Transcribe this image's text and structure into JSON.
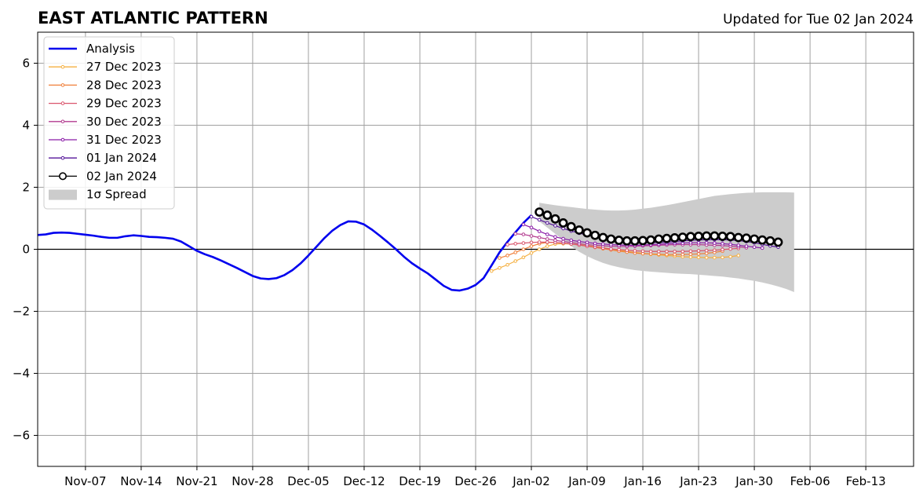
{
  "title": "EAST ATLANTIC PATTERN",
  "updated": "Updated for Tue 02 Jan 2024",
  "chart_data": {
    "type": "line",
    "title": "EAST ATLANTIC PATTERN",
    "subtitle": "Updated for Tue 02 Jan 2024",
    "xlim": [
      "2023-11-01",
      "2024-02-19"
    ],
    "ylim": [
      -7,
      7
    ],
    "yticks": [
      -6,
      -4,
      -2,
      0,
      2,
      4,
      6
    ],
    "ytick_labels": [
      "−6",
      "−4",
      "−2",
      "0",
      "2",
      "4",
      "6"
    ],
    "xticks": [
      "2023-11-07",
      "2023-11-14",
      "2023-11-21",
      "2023-11-28",
      "2023-12-05",
      "2023-12-12",
      "2023-12-19",
      "2023-12-26",
      "2024-01-02",
      "2024-01-09",
      "2024-01-16",
      "2024-01-23",
      "2024-01-30",
      "2024-02-06",
      "2024-02-13"
    ],
    "xtick_labels": [
      "Nov-07",
      "Nov-14",
      "Nov-21",
      "Nov-28",
      "Dec-05",
      "Dec-12",
      "Dec-19",
      "Dec-26",
      "Jan-02",
      "Jan-09",
      "Jan-16",
      "Jan-23",
      "Jan-30",
      "Feb-06",
      "Feb-13"
    ],
    "grid": true,
    "zero_line": true,
    "legend_position": "upper-left",
    "analysis": {
      "name": "Analysis",
      "color": "#0000ee",
      "x": [
        "2023-11-01",
        "2023-11-02",
        "2023-11-03",
        "2023-11-04",
        "2023-11-05",
        "2023-11-06",
        "2023-11-07",
        "2023-11-08",
        "2023-11-09",
        "2023-11-10",
        "2023-11-11",
        "2023-11-12",
        "2023-11-13",
        "2023-11-14",
        "2023-11-15",
        "2023-11-16",
        "2023-11-17",
        "2023-11-18",
        "2023-11-19",
        "2023-11-20",
        "2023-11-21",
        "2023-11-22",
        "2023-11-23",
        "2023-11-24",
        "2023-11-25",
        "2023-11-26",
        "2023-11-27",
        "2023-11-28",
        "2023-11-29",
        "2023-11-30",
        "2023-12-01",
        "2023-12-02",
        "2023-12-03",
        "2023-12-04",
        "2023-12-05",
        "2023-12-06",
        "2023-12-07",
        "2023-12-08",
        "2023-12-09",
        "2023-12-10",
        "2023-12-11",
        "2023-12-12",
        "2023-12-13",
        "2023-12-14",
        "2023-12-15",
        "2023-12-16",
        "2023-12-17",
        "2023-12-18",
        "2023-12-19",
        "2023-12-20",
        "2023-12-21",
        "2023-12-22",
        "2023-12-23",
        "2023-12-24",
        "2023-12-25",
        "2023-12-26",
        "2023-12-27",
        "2023-12-28",
        "2023-12-29",
        "2023-12-30",
        "2023-12-31",
        "2024-01-01",
        "2024-01-02"
      ],
      "y": [
        0.46,
        0.48,
        0.53,
        0.54,
        0.53,
        0.5,
        0.47,
        0.44,
        0.4,
        0.37,
        0.37,
        0.42,
        0.45,
        0.43,
        0.4,
        0.39,
        0.37,
        0.34,
        0.25,
        0.1,
        -0.05,
        -0.16,
        -0.25,
        -0.36,
        -0.48,
        -0.6,
        -0.73,
        -0.86,
        -0.94,
        -0.96,
        -0.93,
        -0.83,
        -0.67,
        -0.46,
        -0.2,
        0.08,
        0.36,
        0.6,
        0.78,
        0.9,
        0.89,
        0.8,
        0.63,
        0.43,
        0.22,
        0.0,
        -0.24,
        -0.45,
        -0.62,
        -0.78,
        -0.98,
        -1.18,
        -1.31,
        -1.33,
        -1.27,
        -1.15,
        -0.93,
        -0.52,
        -0.1,
        0.24,
        0.55,
        0.85,
        1.1
      ]
    },
    "series": [
      {
        "name": "27 Dec 2023",
        "color": "#f5b041",
        "start": "2023-12-28",
        "values": [
          -0.7,
          -0.6,
          -0.5,
          -0.38,
          -0.26,
          -0.12,
          0.0,
          0.1,
          0.17,
          0.18,
          0.17,
          0.15,
          0.12,
          0.09,
          0.05,
          0.01,
          -0.03,
          -0.07,
          -0.1,
          -0.13,
          -0.16,
          -0.18,
          -0.2,
          -0.22,
          -0.24,
          -0.25,
          -0.26,
          -0.27,
          -0.27,
          -0.26,
          -0.24,
          -0.2
        ]
      },
      {
        "name": "28 Dec 2023",
        "color": "#f07f39",
        "start": "2023-12-29",
        "values": [
          -0.28,
          -0.2,
          -0.1,
          0.0,
          0.1,
          0.18,
          0.22,
          0.22,
          0.2,
          0.17,
          0.14,
          0.1,
          0.06,
          0.02,
          -0.02,
          -0.06,
          -0.09,
          -0.12,
          -0.14,
          -0.15,
          -0.16,
          -0.17,
          -0.17,
          -0.17,
          -0.16,
          -0.15,
          -0.13,
          -0.1,
          -0.06
        ]
      },
      {
        "name": "29 Dec 2023",
        "color": "#d9546b",
        "start": "2023-12-30",
        "values": [
          0.15,
          0.18,
          0.2,
          0.22,
          0.23,
          0.23,
          0.22,
          0.2,
          0.17,
          0.14,
          0.1,
          0.07,
          0.04,
          0.01,
          -0.01,
          -0.03,
          -0.05,
          -0.06,
          -0.07,
          -0.07,
          -0.07,
          -0.07,
          -0.07,
          -0.06,
          -0.05,
          -0.04,
          -0.03,
          -0.01,
          0.01,
          0.03
        ]
      },
      {
        "name": "30 Dec 2023",
        "color": "#b23a8f",
        "start": "2023-12-31",
        "values": [
          0.5,
          0.48,
          0.43,
          0.38,
          0.33,
          0.29,
          0.25,
          0.22,
          0.18,
          0.15,
          0.13,
          0.11,
          0.1,
          0.09,
          0.09,
          0.1,
          0.11,
          0.12,
          0.13,
          0.14,
          0.15,
          0.15,
          0.15,
          0.15,
          0.14,
          0.13,
          0.12,
          0.1,
          0.08,
          0.05
        ]
      },
      {
        "name": "31 Dec 2023",
        "color": "#8a1aa8",
        "start": "2024-01-01",
        "values": [
          0.8,
          0.7,
          0.58,
          0.48,
          0.4,
          0.34,
          0.29,
          0.25,
          0.22,
          0.19,
          0.17,
          0.15,
          0.14,
          0.13,
          0.13,
          0.14,
          0.15,
          0.16,
          0.18,
          0.19,
          0.2,
          0.21,
          0.21,
          0.21,
          0.2,
          0.18,
          0.16,
          0.13,
          0.1,
          0.07,
          0.04
        ]
      },
      {
        "name": "01 Jan 2024",
        "color": "#55159a",
        "start": "2024-01-02",
        "values": [
          1.05,
          0.95,
          0.85,
          0.76,
          0.67,
          0.59,
          0.52,
          0.46,
          0.4,
          0.35,
          0.31,
          0.27,
          0.24,
          0.22,
          0.21,
          0.21,
          0.22,
          0.23,
          0.25,
          0.27,
          0.29,
          0.3,
          0.31,
          0.31,
          0.31,
          0.3,
          0.28,
          0.25,
          0.21,
          0.16,
          0.11,
          0.07
        ]
      },
      {
        "name": "02 Jan 2024",
        "color": "#000000",
        "start": "2024-01-03",
        "values": [
          1.2,
          1.1,
          0.98,
          0.85,
          0.73,
          0.62,
          0.53,
          0.45,
          0.38,
          0.33,
          0.29,
          0.27,
          0.27,
          0.28,
          0.3,
          0.33,
          0.35,
          0.37,
          0.39,
          0.41,
          0.42,
          0.43,
          0.43,
          0.42,
          0.41,
          0.38,
          0.36,
          0.33,
          0.3,
          0.27,
          0.23
        ]
      }
    ],
    "spread": {
      "name": "1σ Spread",
      "color": "#cccccc",
      "start": "2024-01-03",
      "upper": [
        1.5,
        1.46,
        1.42,
        1.39,
        1.36,
        1.33,
        1.3,
        1.28,
        1.26,
        1.25,
        1.25,
        1.26,
        1.28,
        1.31,
        1.34,
        1.38,
        1.42,
        1.47,
        1.52,
        1.57,
        1.62,
        1.67,
        1.72,
        1.75,
        1.78,
        1.8,
        1.82,
        1.83,
        1.84,
        1.84,
        1.84,
        1.84,
        1.83
      ],
      "lower": [
        0.9,
        0.7,
        0.5,
        0.3,
        0.1,
        -0.08,
        -0.22,
        -0.34,
        -0.44,
        -0.52,
        -0.58,
        -0.63,
        -0.67,
        -0.7,
        -0.72,
        -0.74,
        -0.76,
        -0.78,
        -0.79,
        -0.8,
        -0.82,
        -0.84,
        -0.86,
        -0.88,
        -0.91,
        -0.94,
        -0.98,
        -1.02,
        -1.07,
        -1.13,
        -1.2,
        -1.28,
        -1.38
      ]
    }
  }
}
